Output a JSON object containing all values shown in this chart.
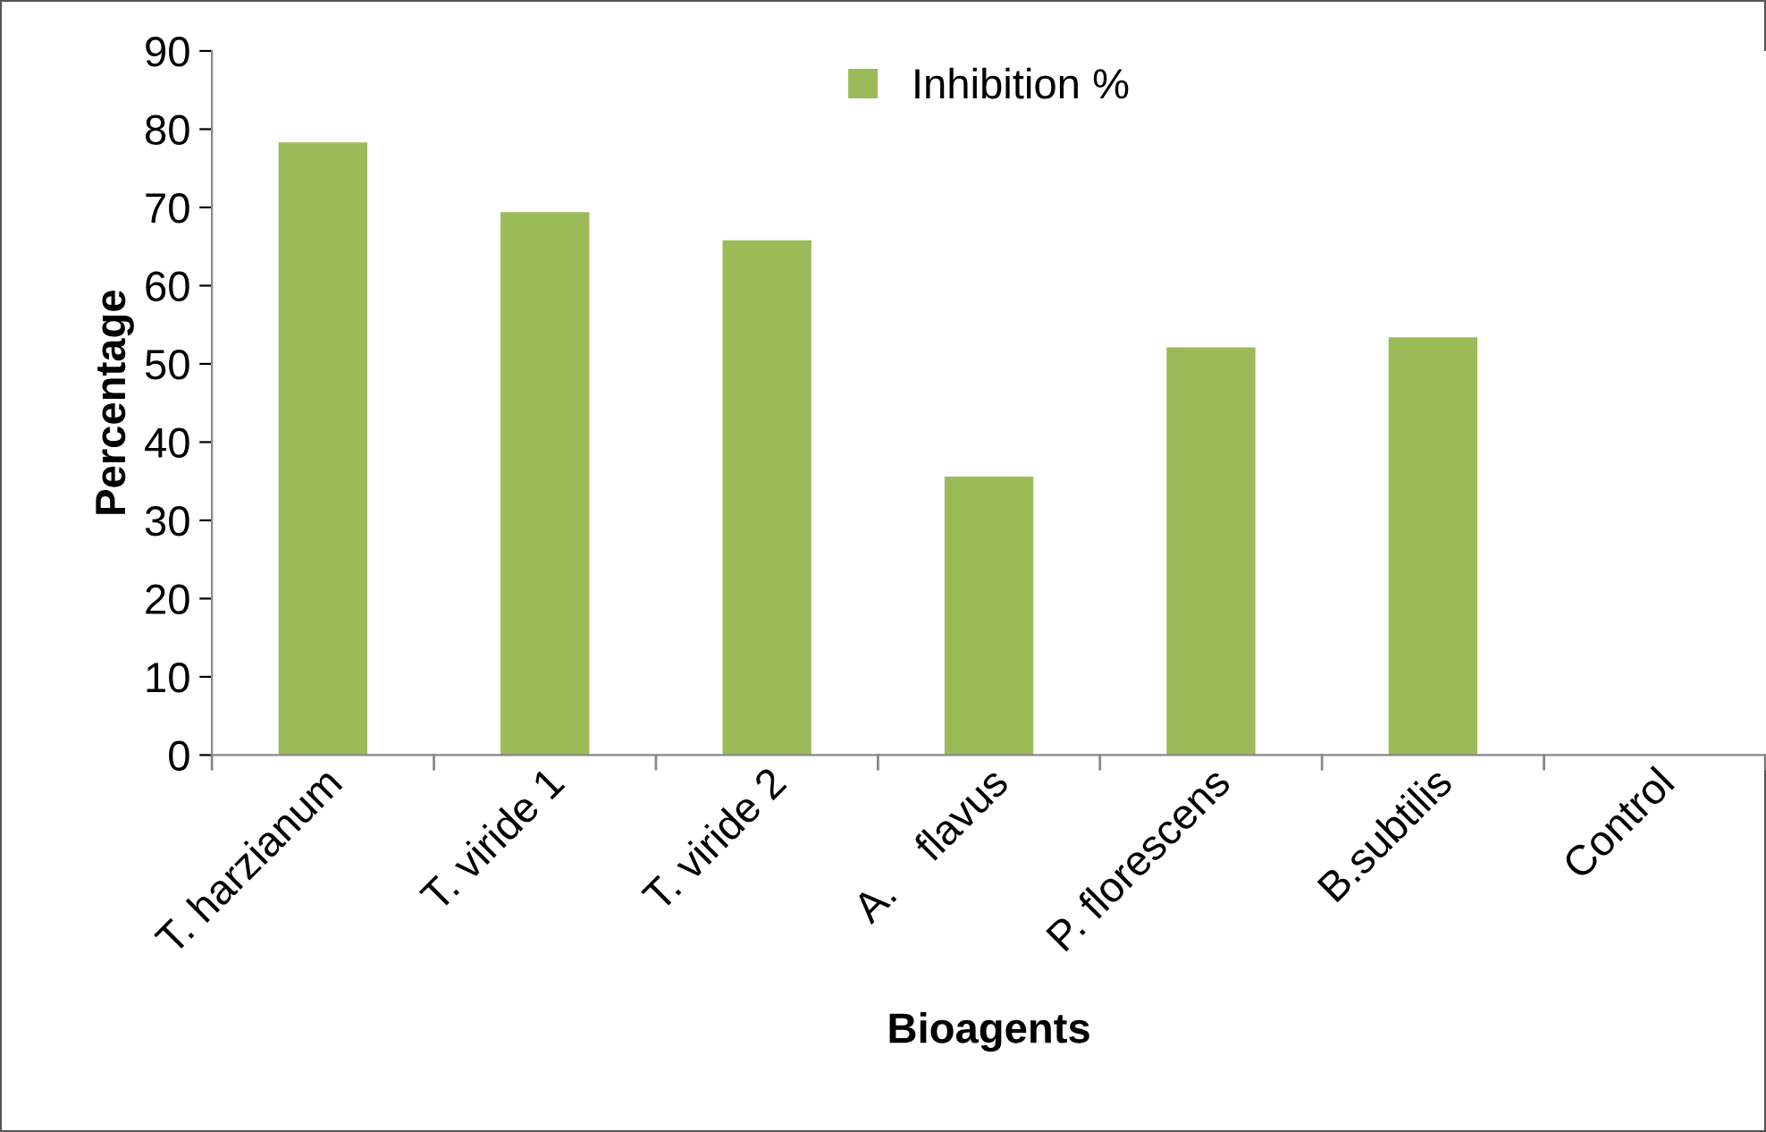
{
  "chart_data": {
    "type": "bar",
    "xlabel": "Bioagents",
    "ylabel": "Percentage",
    "categories": [
      "T. harzianum",
      "T. viride 1",
      "T. viride 2",
      "A.    flavus",
      "P. florescens",
      "B.subtilis",
      "Control"
    ],
    "series": [
      {
        "name": "Inhibition %",
        "color": "#9bbb59",
        "values": [
          78.3,
          69.4,
          65.8,
          35.6,
          52.1,
          53.4,
          0
        ]
      }
    ],
    "ylim": [
      0,
      90
    ],
    "yticks": [
      0,
      10,
      20,
      30,
      40,
      50,
      60,
      70,
      80,
      90
    ],
    "grid": false,
    "legend": "top"
  }
}
